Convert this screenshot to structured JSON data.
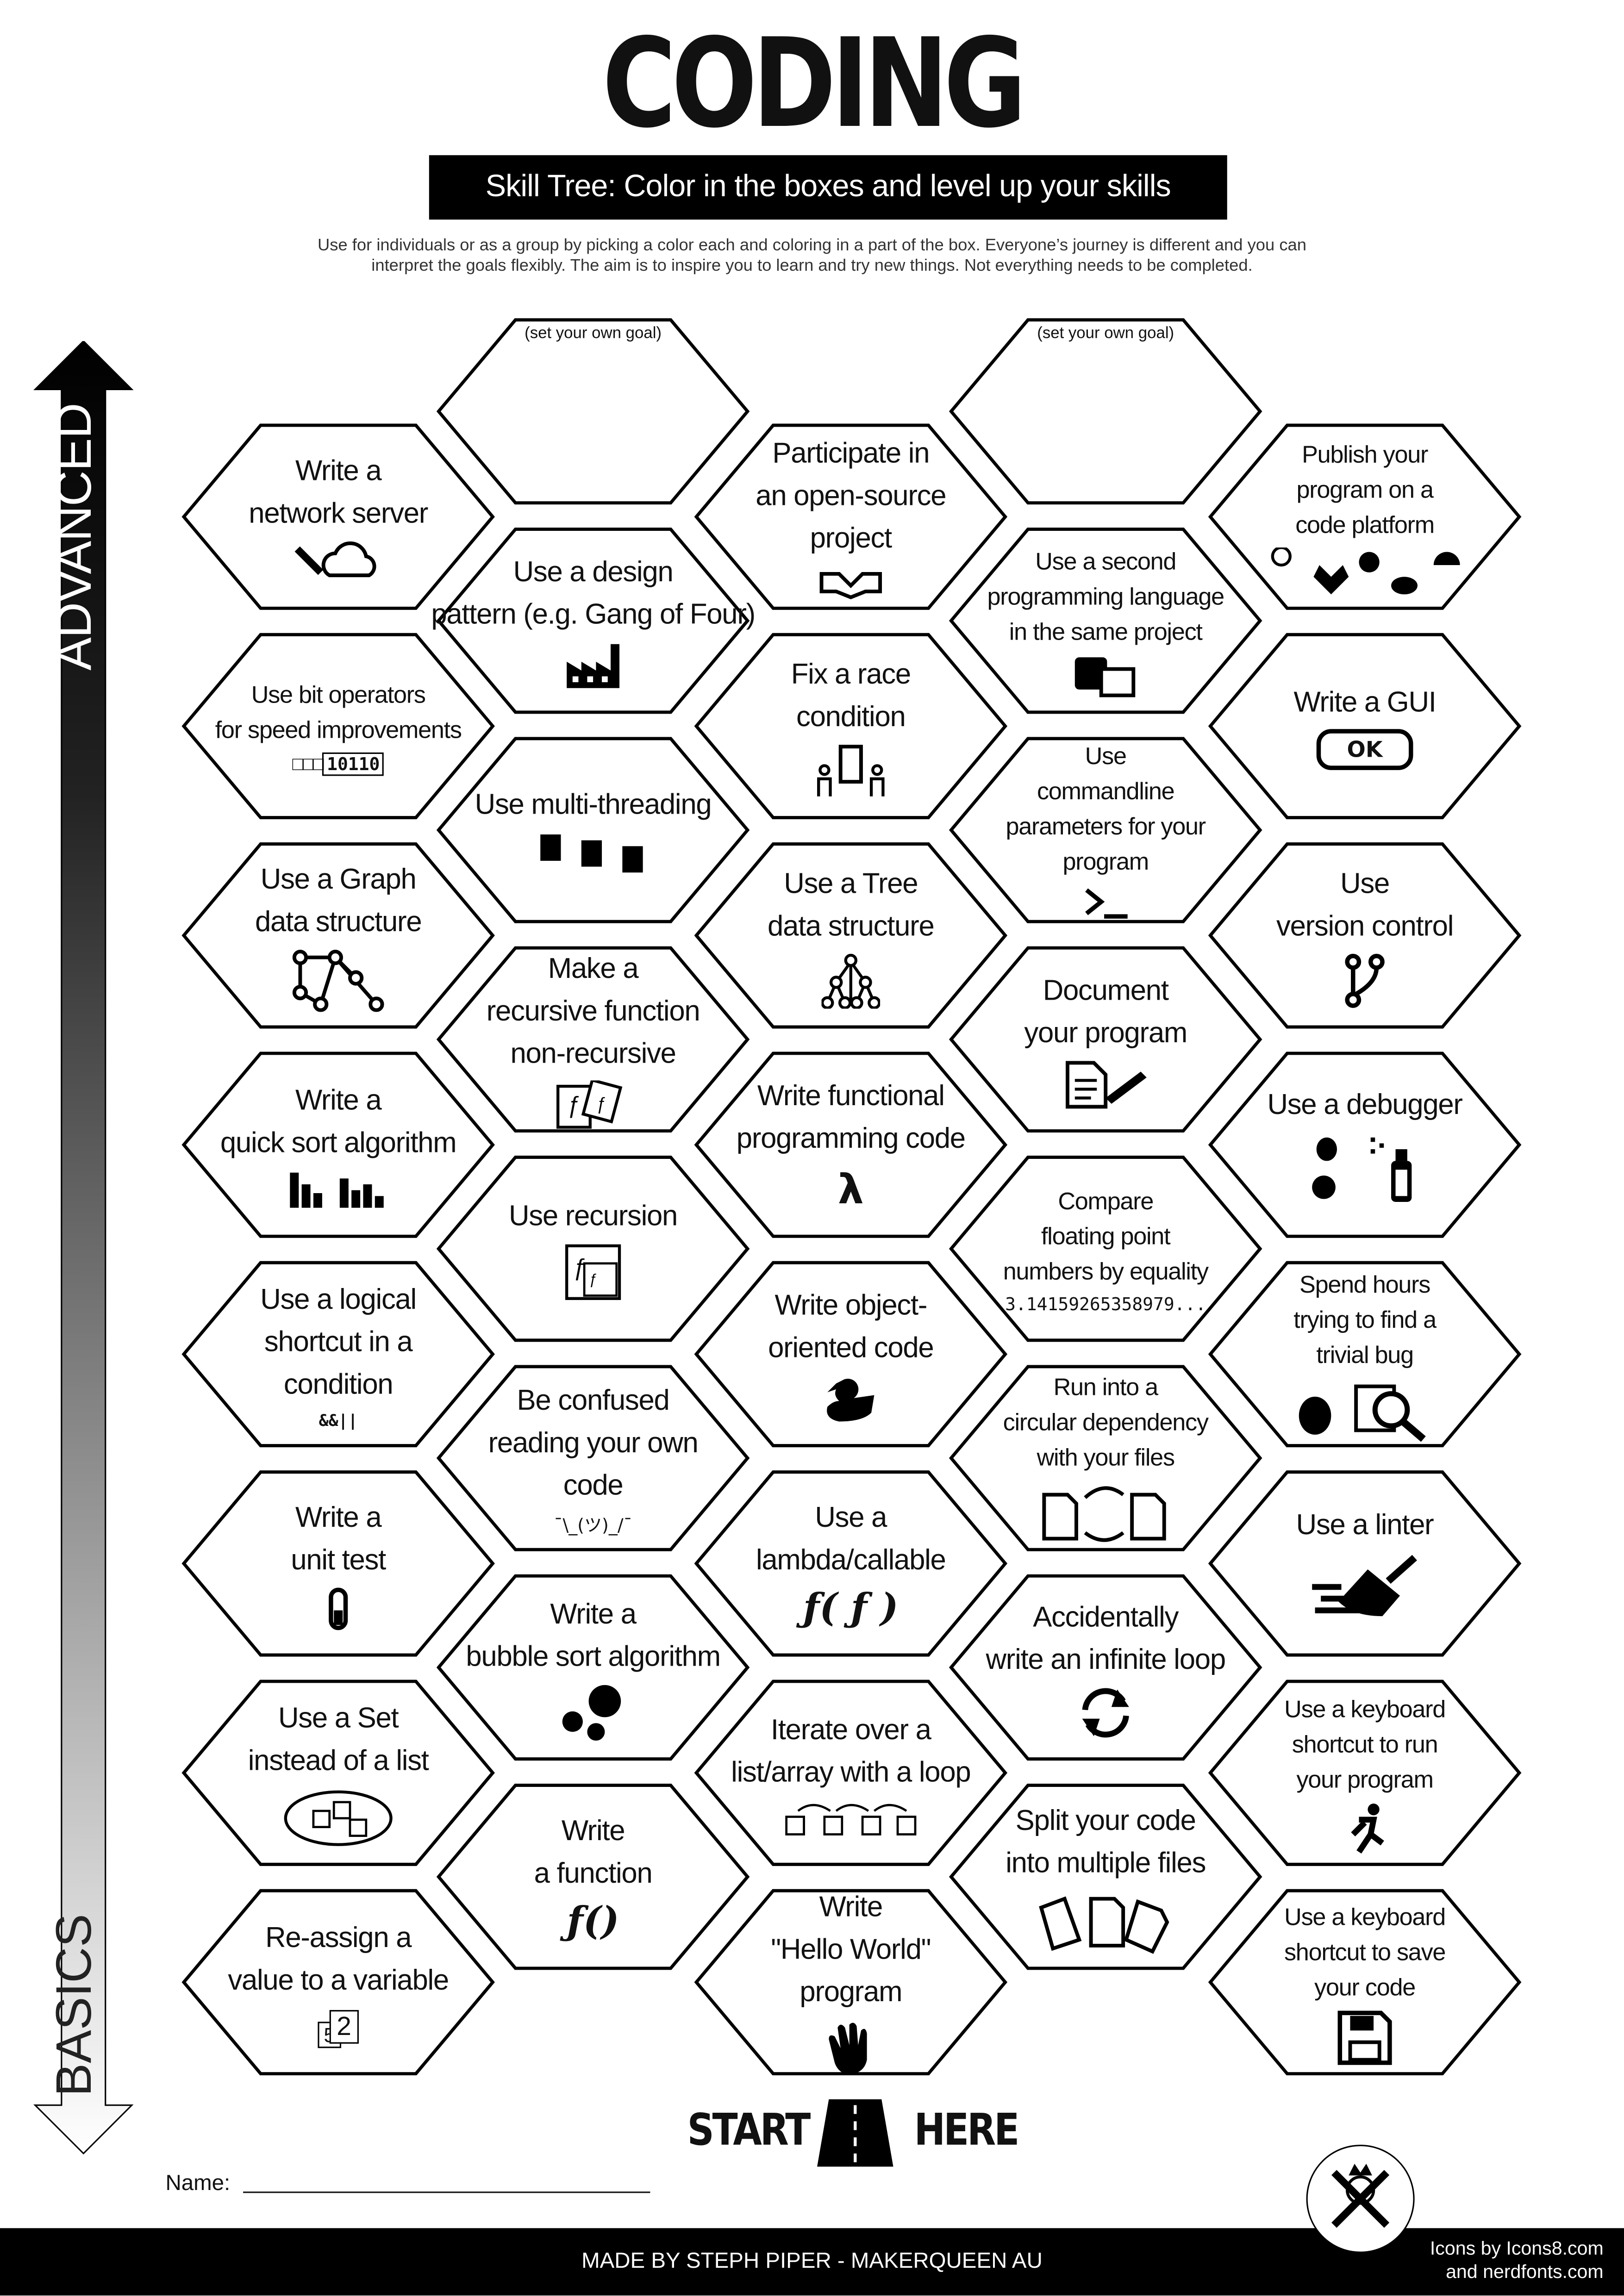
{
  "header": {
    "title": "CODING",
    "subtitle": "Skill Tree:  Color in the boxes and level up your skills",
    "description_line1": "Use for individuals or as a group by picking a color each and coloring in a part of the box.  Everyone’s journey is different and you can",
    "description_line2": "interpret the goals flexibly.  The aim is to inspire you to learn and try new things. Not everything needs to be completed."
  },
  "axis": {
    "top_label": "ADVANCED",
    "bottom_label": "BASICS"
  },
  "columns": [
    {
      "cells": [
        {
          "lines": [
            "Write a",
            "network server"
          ],
          "icon": "plug-cloud-icon"
        },
        {
          "lines": [
            "Use bit operators",
            "for speed improvements"
          ],
          "icon": "bits-icon",
          "icon_text": "10110",
          "small": true
        },
        {
          "lines": [
            "Use a Graph",
            "data structure"
          ],
          "icon": "graph-icon"
        },
        {
          "lines": [
            "Write a",
            "quick sort algorithm"
          ],
          "icon": "bar-sort-icon"
        },
        {
          "lines": [
            "Use a logical",
            "shortcut in a",
            "condition"
          ],
          "icon": "logic-operators-icon",
          "icon_text": "&&||"
        },
        {
          "lines": [
            "Write a",
            "unit test"
          ],
          "icon": "test-tube-icon"
        },
        {
          "lines": [
            "Use a Set",
            "instead of a list"
          ],
          "icon": "set-icon"
        },
        {
          "lines": [
            "Re-assign a",
            "value to a variable"
          ],
          "icon": "variable-icon",
          "icon_text": "2"
        }
      ]
    },
    {
      "cells": [
        {
          "goal": "(set your own goal)",
          "lines": []
        },
        {
          "lines": [
            "Use a design",
            "pattern (e.g. Gang of Four)"
          ],
          "icon": "factory-icon"
        },
        {
          "lines": [
            "Use multi-threading"
          ],
          "icon": "chips-icon"
        },
        {
          "lines": [
            "Make a",
            "recursive function",
            "non-recursive"
          ],
          "icon": "function-cards-icon"
        },
        {
          "lines": [
            "Use recursion"
          ],
          "icon": "recursion-icon"
        },
        {
          "lines": [
            "Be confused",
            "reading your own",
            "code"
          ],
          "icon": "shrug-icon",
          "icon_text": "¯\\_(ツ)_/¯"
        },
        {
          "lines": [
            "Write a",
            "bubble sort algorithm"
          ],
          "icon": "bubbles-icon"
        },
        {
          "lines": [
            "Write",
            "a function"
          ],
          "icon": "function-icon",
          "icon_text": "ƒ()"
        }
      ]
    },
    {
      "cells": [
        {
          "lines": [
            "Participate in",
            "an open-source",
            "project"
          ],
          "icon": "handshake-icon"
        },
        {
          "lines": [
            "Fix a race",
            "condition"
          ],
          "icon": "race-door-icon"
        },
        {
          "lines": [
            "Use a Tree",
            "data structure"
          ],
          "icon": "tree-icon"
        },
        {
          "lines": [
            "Write functional",
            "programming code"
          ],
          "icon": "lambda-icon",
          "icon_text": "λ"
        },
        {
          "lines": [
            "Write object-",
            "oriented code"
          ],
          "icon": "duck-icon"
        },
        {
          "lines": [
            "Use a",
            "lambda/callable"
          ],
          "icon": "callable-icon",
          "icon_text": "ƒ( ƒ )"
        },
        {
          "lines": [
            "Iterate over a",
            "list/array with a loop"
          ],
          "icon": "loop-array-icon"
        },
        {
          "lines": [
            "Write",
            "\"Hello World\"",
            "program"
          ],
          "icon": "waving-hand-icon"
        }
      ]
    },
    {
      "cells": [
        {
          "goal": "(set your own goal)",
          "lines": []
        },
        {
          "lines": [
            "Use a second",
            "programming language",
            "in the same project"
          ],
          "icon": "languages-icon",
          "small": true
        },
        {
          "lines": [
            "Use",
            "commandline",
            "parameters for your",
            "program"
          ],
          "icon": "terminal-icon",
          "small": true
        },
        {
          "lines": [
            "Document",
            "your program"
          ],
          "icon": "document-pen-icon"
        },
        {
          "lines": [
            "Compare",
            "floating point",
            "numbers by equality"
          ],
          "icon": "pi-icon",
          "icon_text": "3.14159265358979...",
          "small": true
        },
        {
          "lines": [
            "Run into a",
            "circular dependency",
            "with your files"
          ],
          "icon": "circular-files-icon",
          "small": true
        },
        {
          "lines": [
            "Accidentally",
            "write an infinite loop"
          ],
          "icon": "refresh-icon"
        },
        {
          "lines": [
            "Split your code",
            "into multiple files"
          ],
          "icon": "files-icon"
        }
      ]
    },
    {
      "cells": [
        {
          "lines": [
            "Publish your",
            "program on a",
            "code platform"
          ],
          "icon": "code-platforms-icon",
          "small": true
        },
        {
          "lines": [
            "Write a GUI"
          ],
          "icon": "ok-button-icon",
          "icon_text": "OK"
        },
        {
          "lines": [
            "Use",
            "version control"
          ],
          "icon": "git-branch-icon"
        },
        {
          "lines": [
            "Use a debugger"
          ],
          "icon": "bug-spray-icon"
        },
        {
          "lines": [
            "Spend hours",
            "trying to find a",
            "trivial bug"
          ],
          "icon": "bug-search-icon",
          "small": true
        },
        {
          "lines": [
            "Use a linter"
          ],
          "icon": "broom-icon"
        },
        {
          "lines": [
            "Use a keyboard",
            "shortcut to run",
            "your program"
          ],
          "icon": "running-icon",
          "small": true
        },
        {
          "lines": [
            "Use a keyboard",
            "shortcut to save",
            "your code"
          ],
          "icon": "floppy-disk-icon",
          "small": true
        }
      ]
    }
  ],
  "start": {
    "left": "START",
    "right": "HERE"
  },
  "name_label": "Name:",
  "footer": {
    "made_by": "MADE BY STEPH PIPER  -  MAKERQUEEN AU",
    "credit_line1": "Icons by Icons8.com",
    "credit_line2": "and nerdfonts.com"
  },
  "colors": {
    "ink": "#000000",
    "paper": "#ffffff",
    "text_gray": "#333333"
  }
}
